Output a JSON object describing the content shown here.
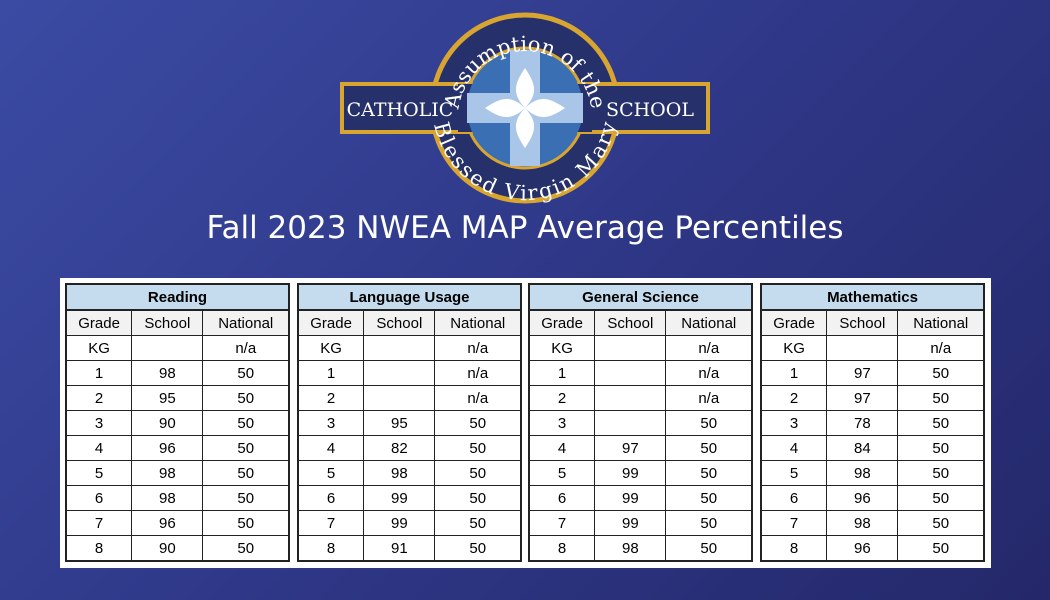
{
  "logo": {
    "top_arc": "Assumption of the",
    "bottom_arc": "Blessed Virgin Mary",
    "left": "CATHOLIC",
    "right": "SCHOOL"
  },
  "title": "Fall 2023 NWEA MAP Average Percentiles",
  "tables": [
    {
      "title": "Reading",
      "columns": [
        "Grade",
        "School",
        "National"
      ],
      "rows": [
        [
          "KG",
          null,
          "n/a"
        ],
        [
          1,
          98,
          50
        ],
        [
          2,
          95,
          50
        ],
        [
          3,
          90,
          50
        ],
        [
          4,
          96,
          50
        ],
        [
          5,
          98,
          50
        ],
        [
          6,
          98,
          50
        ],
        [
          7,
          96,
          50
        ],
        [
          8,
          90,
          50
        ]
      ]
    },
    {
      "title": "Language Usage",
      "columns": [
        "Grade",
        "School",
        "National"
      ],
      "rows": [
        [
          "KG",
          null,
          "n/a"
        ],
        [
          1,
          null,
          "n/a"
        ],
        [
          2,
          null,
          "n/a"
        ],
        [
          3,
          95,
          50
        ],
        [
          4,
          82,
          50
        ],
        [
          5,
          98,
          50
        ],
        [
          6,
          99,
          50
        ],
        [
          7,
          99,
          50
        ],
        [
          8,
          91,
          50
        ]
      ]
    },
    {
      "title": "General Science",
      "columns": [
        "Grade",
        "School",
        "National"
      ],
      "rows": [
        [
          "KG",
          null,
          "n/a"
        ],
        [
          1,
          null,
          "n/a"
        ],
        [
          2,
          null,
          "n/a"
        ],
        [
          3,
          null,
          50
        ],
        [
          4,
          97,
          50
        ],
        [
          5,
          99,
          50
        ],
        [
          6,
          99,
          50
        ],
        [
          7,
          99,
          50
        ],
        [
          8,
          98,
          50
        ]
      ]
    },
    {
      "title": "Mathematics",
      "columns": [
        "Grade",
        "School",
        "National"
      ],
      "rows": [
        [
          "KG",
          null,
          "n/a"
        ],
        [
          1,
          97,
          50
        ],
        [
          2,
          97,
          50
        ],
        [
          3,
          78,
          50
        ],
        [
          4,
          84,
          50
        ],
        [
          5,
          98,
          50
        ],
        [
          6,
          96,
          50
        ],
        [
          7,
          98,
          50
        ],
        [
          8,
          96,
          50
        ]
      ]
    }
  ]
}
